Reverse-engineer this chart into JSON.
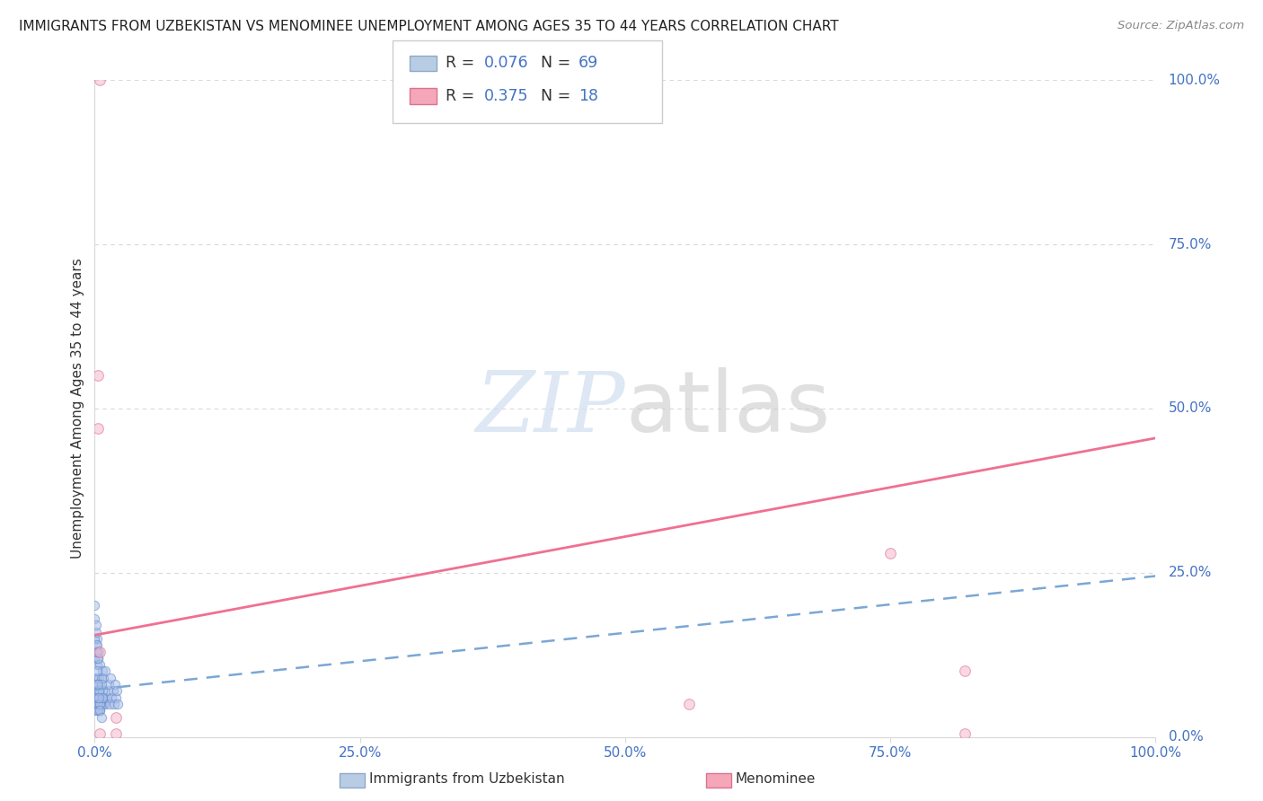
{
  "title": "IMMIGRANTS FROM UZBEKISTAN VS MENOMINEE UNEMPLOYMENT AMONG AGES 35 TO 44 YEARS CORRELATION CHART",
  "source": "Source: ZipAtlas.com",
  "ylabel": "Unemployment Among Ages 35 to 44 years",
  "background_color": "#ffffff",
  "title_fontsize": 11,
  "axis_label_color": "#4472c4",
  "blue_scatter": {
    "x": [
      0.0,
      0.0,
      0.0,
      0.001,
      0.001,
      0.001,
      0.002,
      0.002,
      0.002,
      0.002,
      0.003,
      0.003,
      0.003,
      0.004,
      0.004,
      0.004,
      0.005,
      0.005,
      0.005,
      0.006,
      0.006,
      0.007,
      0.007,
      0.008,
      0.008,
      0.009,
      0.01,
      0.01,
      0.011,
      0.012,
      0.013,
      0.014,
      0.015,
      0.016,
      0.017,
      0.018,
      0.019,
      0.02,
      0.021,
      0.022,
      0.003,
      0.004,
      0.005,
      0.006,
      0.007,
      0.002,
      0.003,
      0.001,
      0.002,
      0.003,
      0.004,
      0.005,
      0.006,
      0.007,
      0.0,
      0.001,
      0.002,
      0.003,
      0.004,
      0.005,
      0.006,
      0.0,
      0.001,
      0.002,
      0.003,
      0.0,
      0.001,
      0.002
    ],
    "y": [
      0.04,
      0.07,
      0.12,
      0.05,
      0.09,
      0.14,
      0.05,
      0.08,
      0.11,
      0.15,
      0.04,
      0.08,
      0.12,
      0.05,
      0.09,
      0.13,
      0.04,
      0.07,
      0.11,
      0.05,
      0.09,
      0.05,
      0.1,
      0.05,
      0.09,
      0.06,
      0.05,
      0.1,
      0.06,
      0.07,
      0.08,
      0.05,
      0.09,
      0.06,
      0.07,
      0.05,
      0.08,
      0.06,
      0.07,
      0.05,
      0.06,
      0.07,
      0.05,
      0.06,
      0.07,
      0.06,
      0.05,
      0.08,
      0.06,
      0.04,
      0.07,
      0.05,
      0.08,
      0.06,
      0.15,
      0.13,
      0.1,
      0.08,
      0.06,
      0.04,
      0.03,
      0.18,
      0.16,
      0.14,
      0.12,
      0.2,
      0.17,
      0.13
    ]
  },
  "pink_scatter": {
    "x": [
      0.003,
      0.003,
      0.005,
      0.02,
      0.02,
      0.56,
      0.75,
      0.82,
      0.82,
      0.005,
      0.005
    ],
    "y": [
      0.55,
      0.47,
      0.13,
      0.03,
      0.005,
      0.05,
      0.28,
      0.1,
      0.005,
      1.0,
      0.005
    ]
  },
  "blue_trendline": {
    "x": [
      0.0,
      1.0
    ],
    "y": [
      0.072,
      0.245
    ]
  },
  "pink_trendline": {
    "x": [
      0.0,
      1.0
    ],
    "y": [
      0.155,
      0.455
    ]
  },
  "legend": {
    "blue_R": "0.076",
    "blue_N": "69",
    "pink_R": "0.375",
    "pink_N": "18",
    "blue_face": "#b8cce4",
    "blue_edge": "#8ea9c9",
    "pink_face": "#f4a7b9",
    "pink_edge": "#e07090"
  },
  "grid_color": "#d9d9d9",
  "xlim": [
    0.0,
    1.0
  ],
  "ylim": [
    0.0,
    1.0
  ],
  "xtick_vals": [
    0.0,
    0.25,
    0.5,
    0.75,
    1.0
  ],
  "xtick_labels": [
    "0.0%",
    "25.0%",
    "50.0%",
    "75.0%",
    "100.0%"
  ],
  "ytick_vals": [
    0.0,
    0.25,
    0.5,
    0.75,
    1.0
  ],
  "ytick_labels": [
    "0.0%",
    "25.0%",
    "50.0%",
    "75.0%",
    "100.0%"
  ],
  "watermark_zip": "ZIP",
  "watermark_atlas": "atlas",
  "dot_size": 55,
  "dot_alpha": 0.55,
  "blue_dot_face": "#a8c0e8",
  "blue_dot_edge": "#6688cc",
  "pink_dot_face": "#f4b8cc",
  "pink_dot_edge": "#e06888",
  "blue_line_color": "#7ba7d4",
  "pink_line_color": "#f07090"
}
